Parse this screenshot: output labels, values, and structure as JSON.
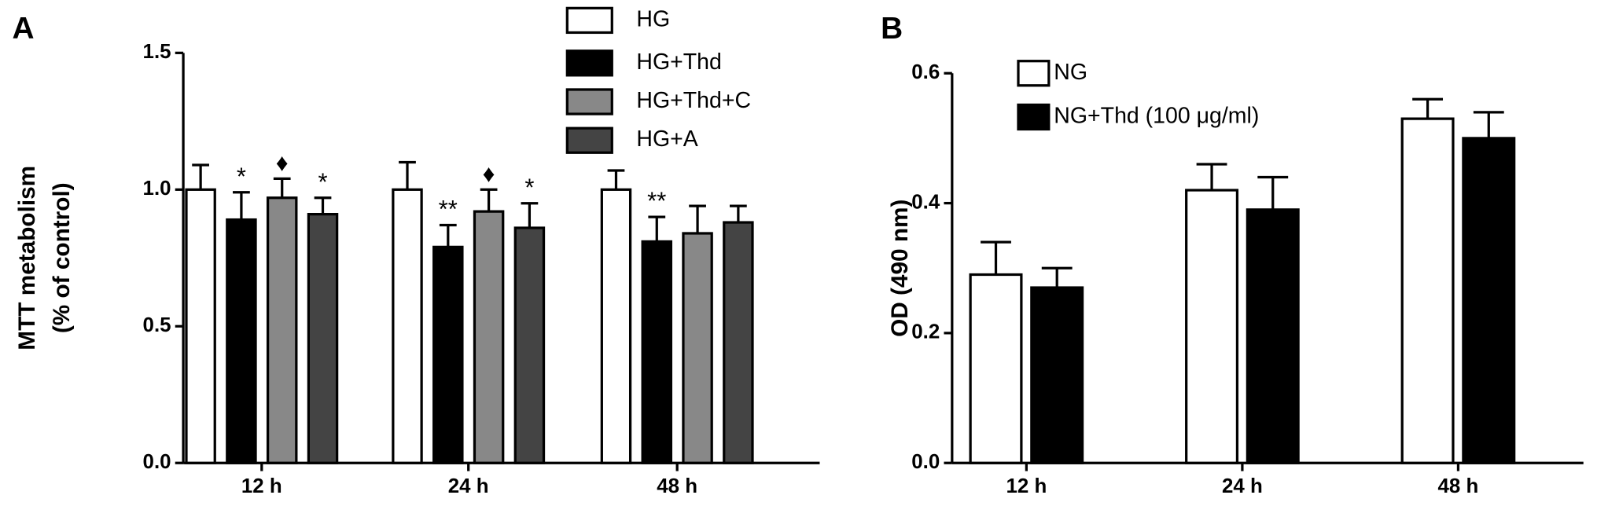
{
  "chart_data": [
    {
      "type": "bar",
      "panel": "A",
      "ylabel": [
        "MTT metabolism",
        "(% of control)"
      ],
      "categories": [
        "12 h",
        "24 h",
        "48 h"
      ],
      "ylim": [
        0,
        1.5
      ],
      "yticks": [
        {
          "value": 0,
          "label": "0.0"
        },
        0.5,
        {
          "value": 1,
          "label": "1.0"
        },
        1.5
      ],
      "series": [
        {
          "name": "HG",
          "color": "#ffffff",
          "values": [
            1.0,
            1.0,
            1.0
          ],
          "errors": [
            0.09,
            0.1,
            0.07
          ],
          "labels": [
            null,
            null,
            null
          ]
        },
        {
          "name": "HG+Thd",
          "color": "#000000",
          "values": [
            0.89,
            0.79,
            0.81
          ],
          "errors": [
            0.1,
            0.08,
            0.09
          ],
          "labels": [
            "*",
            "**",
            "**"
          ]
        },
        {
          "name": "HG+Thd+C",
          "color": "#888888",
          "values": [
            0.97,
            0.92,
            0.84
          ],
          "errors": [
            0.07,
            0.08,
            0.1
          ],
          "labels": [
            "♦",
            "♦",
            null
          ]
        },
        {
          "name": "HG+A",
          "color": "#444444",
          "values": [
            0.91,
            0.86,
            0.88
          ],
          "errors": [
            0.06,
            0.09,
            0.06
          ],
          "labels": [
            "*",
            "*",
            null
          ]
        }
      ]
    },
    {
      "type": "bar",
      "panel": "B",
      "ylabel": [
        "OD (490 nm)"
      ],
      "categories": [
        "12 h",
        "24 h",
        "48 h"
      ],
      "ylim": [
        0,
        0.6
      ],
      "yticks": [
        {
          "value": 0,
          "label": "0.0"
        },
        0.2,
        0.4,
        0.6
      ],
      "series": [
        {
          "name": "NG",
          "color": "#ffffff",
          "values": [
            0.29,
            0.42,
            0.53
          ],
          "errors": [
            0.05,
            0.04,
            0.03
          ]
        },
        {
          "name": "NG+Thd (100 μg/ml)",
          "color": "#000000",
          "values": [
            0.27,
            0.39,
            0.5
          ],
          "errors": [
            0.03,
            0.05,
            0.04
          ]
        }
      ]
    }
  ]
}
